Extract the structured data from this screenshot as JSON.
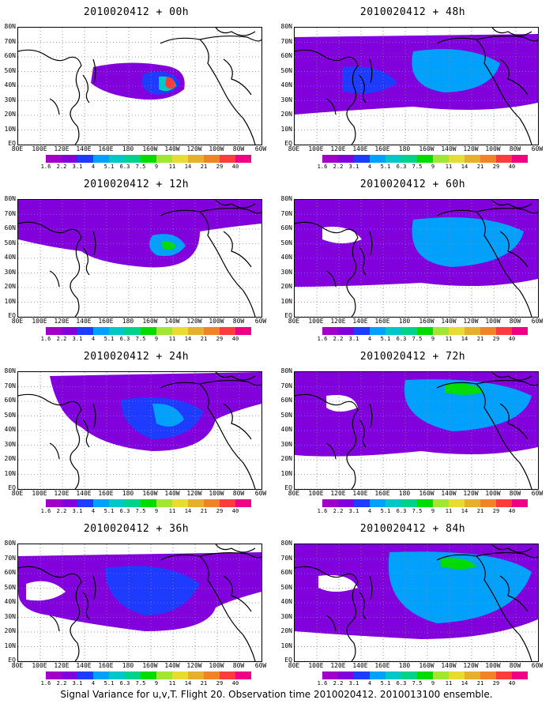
{
  "colorbar": {
    "labels": [
      "1.6",
      "2.2",
      "3.1",
      "4",
      "5.1",
      "6.3",
      "7.5",
      "9",
      "11",
      "14",
      "21",
      "29",
      "40"
    ],
    "colors": [
      "#a000c8",
      "#8200dc",
      "#1e3cff",
      "#00a0ff",
      "#00c8c8",
      "#00d28c",
      "#00dc00",
      "#a0e632",
      "#e6dc32",
      "#e6af2d",
      "#f08228",
      "#fa3c3c",
      "#f00082"
    ]
  },
  "lat_labels": [
    "80N",
    "70N",
    "60N",
    "50N",
    "40N",
    "30N",
    "20N",
    "10N",
    "EQ"
  ],
  "lon_labels": [
    "80E",
    "100E",
    "120E",
    "140E",
    "160E",
    "180",
    "160W",
    "140W",
    "120W",
    "100W",
    "80W",
    "60W"
  ],
  "panels": [
    {
      "title": "2010020412 + 00h"
    },
    {
      "title": "2010020412 + 48h"
    },
    {
      "title": "2010020412 + 12h"
    },
    {
      "title": "2010020412 + 60h"
    },
    {
      "title": "2010020412 + 24h"
    },
    {
      "title": "2010020412 + 72h"
    },
    {
      "title": "2010020412 + 36h"
    },
    {
      "title": "2010020412 + 84h"
    }
  ],
  "footer": "Signal Variance for u,v,T. Flight 20. Observation time 2010020412. 2010013100 ensemble."
}
